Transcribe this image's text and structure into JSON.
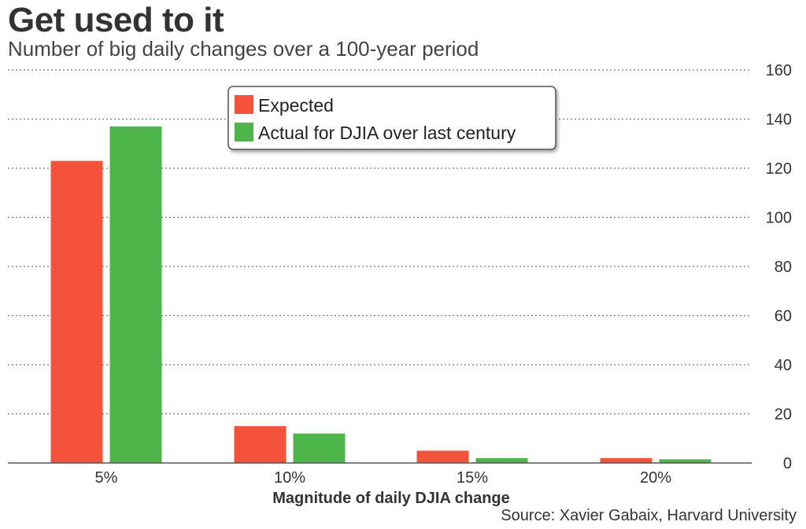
{
  "header": {
    "title": "Get used to it",
    "subtitle": "Number of big daily changes over a 100-year period"
  },
  "source": "Source: Xavier Gabaix, Harvard University",
  "chart_data": {
    "type": "bar",
    "title": "Get used to it",
    "subtitle": "Number of big daily changes over a 100-year period",
    "xlabel": "Magnitude of daily DJIA change",
    "ylabel": "",
    "categories": [
      "5%",
      "10%",
      "15%",
      "20%"
    ],
    "series": [
      {
        "name": "Expected",
        "color": "#f4523b",
        "values": [
          123,
          15,
          5,
          2
        ]
      },
      {
        "name": "Actual for DJIA over last century",
        "color": "#4db549",
        "values": [
          137,
          12,
          2,
          1.5
        ]
      }
    ],
    "ylim": [
      0,
      160
    ],
    "yticks": [
      0,
      20,
      40,
      60,
      80,
      100,
      120,
      140,
      160
    ],
    "y_axis_side": "right",
    "grid": true,
    "legend_position": "top-center"
  }
}
